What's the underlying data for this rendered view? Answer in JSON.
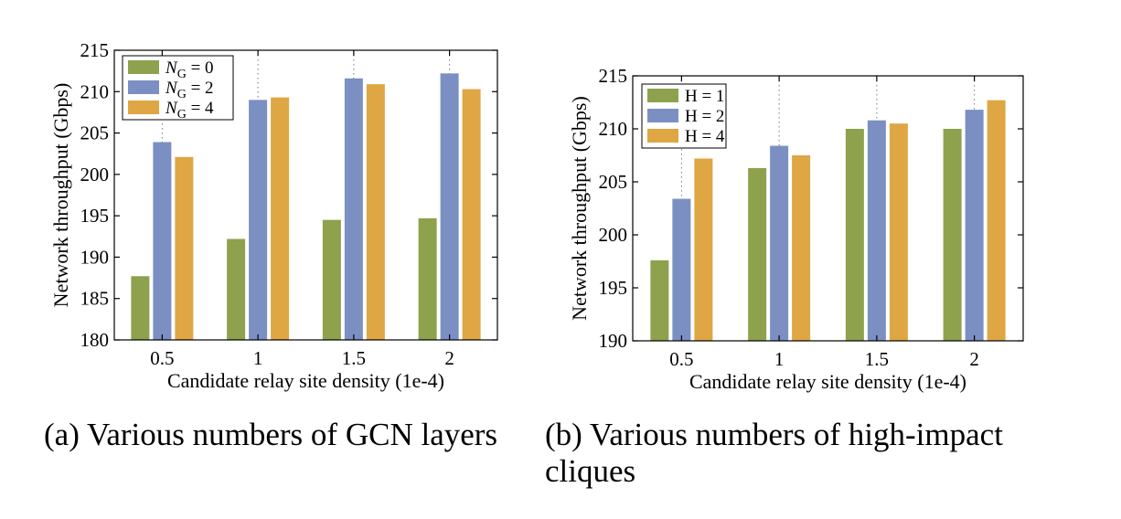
{
  "chart_data": [
    {
      "type": "bar",
      "title": "",
      "caption": "(a) Various numbers of GCN layers",
      "xlabel": "Candidate relay site density (1e-4)",
      "ylabel": "Network throughput (Gbps)",
      "categories": [
        "0.5",
        "1",
        "1.5",
        "2"
      ],
      "ylim": [
        180,
        215
      ],
      "yticks": [
        "180",
        "185",
        "190",
        "195",
        "200",
        "205",
        "210",
        "215"
      ],
      "grid": "x-dotted",
      "legend_position": "top-left",
      "series": [
        {
          "name": "N_G = 0",
          "legend": {
            "main": "N",
            "sub": "G",
            "rest": " = 0"
          },
          "color": "#8ea14d",
          "values": [
            187.7,
            192.2,
            194.5,
            194.7
          ]
        },
        {
          "name": "N_G = 2",
          "legend": {
            "main": "N",
            "sub": "G",
            "rest": " = 2"
          },
          "color": "#7b8fc2",
          "values": [
            203.9,
            209.0,
            211.6,
            212.2
          ]
        },
        {
          "name": "N_G = 4",
          "legend": {
            "main": "N",
            "sub": "G",
            "rest": " = 4"
          },
          "color": "#dfa644",
          "values": [
            202.1,
            209.3,
            210.9,
            210.3
          ]
        }
      ]
    },
    {
      "type": "bar",
      "title": "",
      "caption": "(b) Various numbers of high-impact cliques",
      "xlabel": "Candidate relay site density (1e-4)",
      "ylabel": "Network throughput (Gbps)",
      "categories": [
        "0.5",
        "1",
        "1.5",
        "2"
      ],
      "ylim": [
        190,
        215
      ],
      "yticks": [
        "190",
        "195",
        "200",
        "205",
        "210",
        "215"
      ],
      "grid": "x-dotted",
      "legend_position": "top-left",
      "series": [
        {
          "name": "H = 1",
          "legend": {
            "main": "H = 1",
            "sub": "",
            "rest": ""
          },
          "color": "#8ea14d",
          "values": [
            197.6,
            206.3,
            210.0,
            210.0
          ]
        },
        {
          "name": "H = 2",
          "legend": {
            "main": "H = 2",
            "sub": "",
            "rest": ""
          },
          "color": "#7b8fc2",
          "values": [
            203.4,
            208.4,
            210.8,
            211.8
          ]
        },
        {
          "name": "H = 4",
          "legend": {
            "main": "H = 4",
            "sub": "",
            "rest": ""
          },
          "color": "#dfa644",
          "values": [
            207.2,
            207.5,
            210.5,
            212.7
          ]
        }
      ]
    }
  ]
}
